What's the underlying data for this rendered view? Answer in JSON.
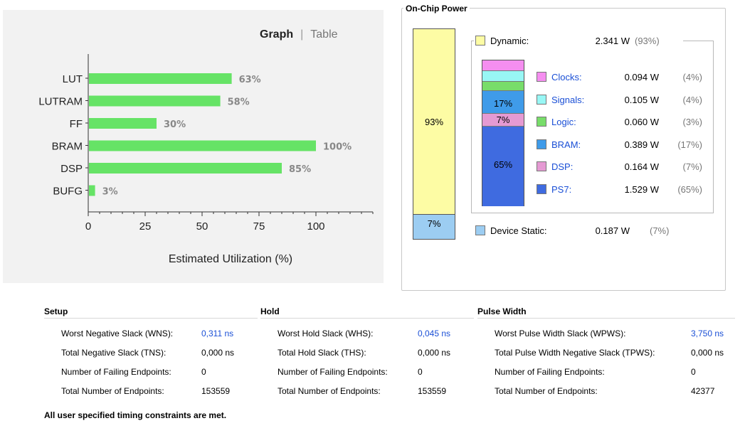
{
  "utilization": {
    "tabs": [
      "Graph",
      "Table"
    ],
    "active_tab": "Graph",
    "bar_color": "#66e366"
  },
  "chart_data": {
    "type": "bar",
    "orientation": "horizontal",
    "categories": [
      "LUT",
      "LUTRAM",
      "FF",
      "BRAM",
      "DSP",
      "BUFG"
    ],
    "values": [
      63,
      58,
      30,
      100,
      85,
      3
    ],
    "value_labels": [
      "63%",
      "58%",
      "30%",
      "100%",
      "85%",
      "3%"
    ],
    "xlabel": "Estimated Utilization (%)",
    "ylabel": "",
    "xlim": [
      0,
      125
    ],
    "xticks": [
      0,
      25,
      50,
      75,
      100
    ],
    "grid": false
  },
  "power": {
    "title": "On-Chip Power",
    "bar_dynamic_pct": "93%",
    "bar_static_pct": "7%",
    "dynamic": {
      "label": "Dynamic:",
      "value": "2.341 W",
      "pct": "(93%)",
      "color": "#fdfca4"
    },
    "device_static": {
      "label": "Device Static:",
      "value": "0.187 W",
      "pct": "(7%)",
      "color": "#9ccdf2"
    },
    "inner_bar_labels": {
      "bram": "17%",
      "dsp": "7%",
      "ps7": "65%"
    },
    "components": [
      {
        "name": "Clocks:",
        "value": "0.094 W",
        "pct": "(4%)",
        "color": "#f58ef0"
      },
      {
        "name": "Signals:",
        "value": "0.105 W",
        "pct": "(4%)",
        "color": "#98f7f5"
      },
      {
        "name": "Logic:",
        "value": "0.060 W",
        "pct": "(3%)",
        "color": "#78dd6a"
      },
      {
        "name": "BRAM:",
        "value": "0.389 W",
        "pct": "(17%)",
        "color": "#3f9be9"
      },
      {
        "name": "DSP:",
        "value": "0.164 W",
        "pct": "(7%)",
        "color": "#e59ad3"
      },
      {
        "name": "PS7:",
        "value": "1.529 W",
        "pct": "(65%)",
        "color": "#3f6be0"
      }
    ]
  },
  "timing": {
    "setup": {
      "title": "Setup",
      "rows": [
        {
          "label": "Worst Negative Slack (WNS):",
          "value": "0,311 ns"
        },
        {
          "label": "Total Negative Slack (TNS):",
          "value": "0,000 ns"
        },
        {
          "label": "Number of Failing Endpoints:",
          "value": "0"
        },
        {
          "label": "Total Number of Endpoints:",
          "value": "153559"
        }
      ]
    },
    "hold": {
      "title": "Hold",
      "rows": [
        {
          "label": "Worst Hold Slack (WHS):",
          "value": "0,045 ns"
        },
        {
          "label": "Total Hold Slack (THS):",
          "value": "0,000 ns"
        },
        {
          "label": "Number of Failing Endpoints:",
          "value": "0"
        },
        {
          "label": "Total Number of Endpoints:",
          "value": "153559"
        }
      ]
    },
    "pulse": {
      "title": "Pulse Width",
      "rows": [
        {
          "label": "Worst Pulse Width Slack (WPWS):",
          "value": "3,750 ns"
        },
        {
          "label": "Total Pulse Width Negative Slack (TPWS):",
          "value": "0,000 ns"
        },
        {
          "label": "Number of Failing Endpoints:",
          "value": "0"
        },
        {
          "label": "Total Number of Endpoints:",
          "value": "42377"
        }
      ]
    },
    "footer": "All user specified timing constraints are met."
  }
}
